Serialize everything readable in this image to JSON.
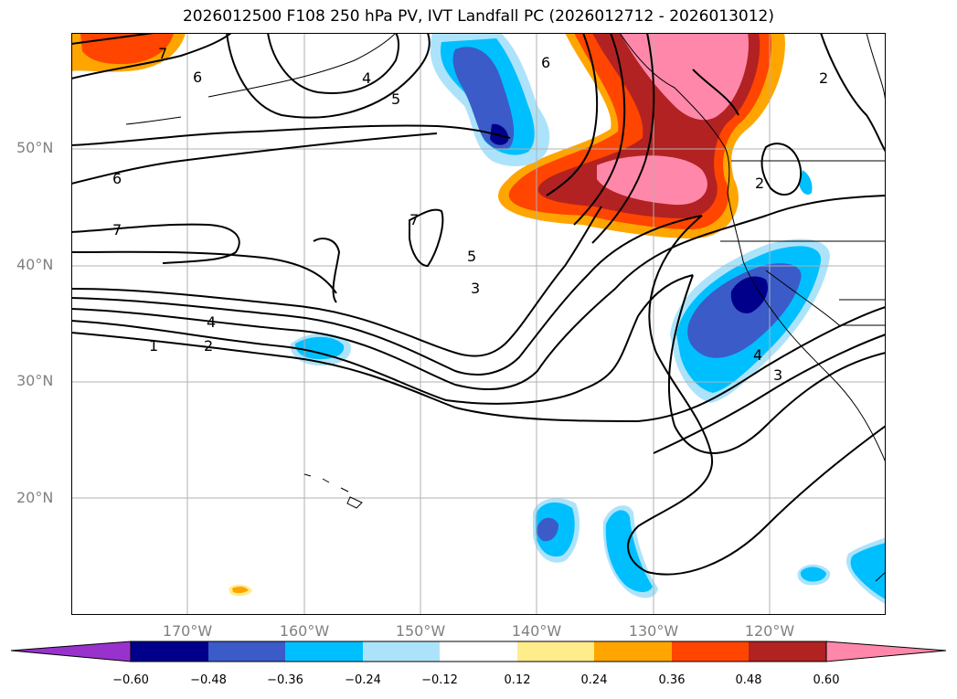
{
  "title": "2026012500 F108 250 hPa PV, IVT Landfall PC (2026012712 - 2026013012)",
  "map": {
    "projection": "equirectangular",
    "lon_range": [
      -180,
      -110
    ],
    "lat_range": [
      10,
      60
    ],
    "grid_lats": [
      20,
      30,
      40,
      50
    ],
    "grid_lons": [
      -170,
      -160,
      -150,
      -140,
      -130,
      -120
    ],
    "lat_labels": [
      "50°N",
      "40°N",
      "30°N",
      "20°N"
    ],
    "lon_labels": [
      "170°W",
      "160°W",
      "150°W",
      "140°W",
      "130°W",
      "120°W"
    ],
    "gridlines": true
  },
  "pv_contours": {
    "levels_shown": [
      "1",
      "2",
      "3",
      "4",
      "5",
      "6",
      "7"
    ],
    "label_1": "1",
    "label_2": "2",
    "label_3": "3",
    "label_4": "4",
    "label_5": "5",
    "label_6": "6",
    "label_7": "7"
  },
  "colorbar": {
    "ticks": [
      "−0.60",
      "−0.48",
      "−0.36",
      "−0.24",
      "−0.12",
      "0.12",
      "0.24",
      "0.36",
      "0.48",
      "0.60"
    ],
    "colors": [
      "#9932CC",
      "#00008B",
      "#3A5BC8",
      "#00BFFF",
      "#ADE3FA",
      "#FFFFFF",
      "#FFEC8B",
      "#FFA500",
      "#FF4500",
      "#B22222",
      "#FF88AA",
      "#FF88AA"
    ]
  }
}
